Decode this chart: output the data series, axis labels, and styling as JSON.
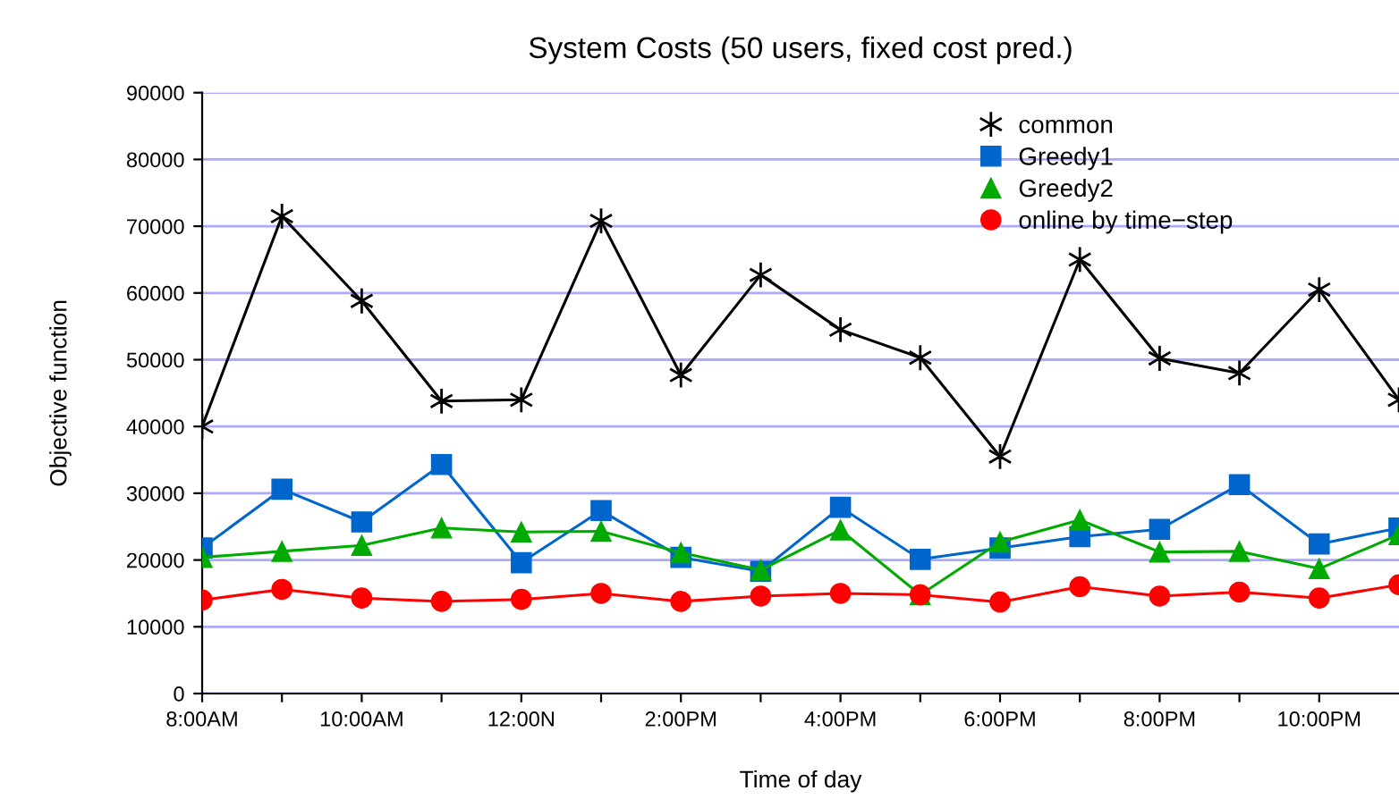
{
  "chart_data": {
    "type": "line",
    "title": "System Costs (50 users, fixed cost pred.)",
    "xlabel": "Time of day",
    "ylabel": "Objective function",
    "x": [
      8,
      9,
      10,
      11,
      12,
      13,
      14,
      15,
      16,
      17,
      18,
      19,
      20,
      21,
      22,
      23
    ],
    "series": [
      {
        "name": "common",
        "color": "#000000",
        "marker": "cross",
        "values": [
          40000,
          71500,
          58800,
          43800,
          44000,
          70800,
          47700,
          62700,
          54500,
          50300,
          35500,
          65000,
          50200,
          48000,
          60500,
          44000
        ]
      },
      {
        "name": "Greedy1",
        "color": "#0066cc",
        "marker": "square",
        "values": [
          21800,
          30600,
          25700,
          34300,
          19600,
          27400,
          20400,
          18300,
          27900,
          20100,
          21800,
          23500,
          24600,
          31300,
          22400,
          24800
        ]
      },
      {
        "name": "Greedy2",
        "color": "#00aa00",
        "marker": "triangle",
        "values": [
          20400,
          21300,
          22200,
          24800,
          24200,
          24300,
          21100,
          18500,
          24500,
          14800,
          22700,
          26000,
          21200,
          21300,
          18700,
          23800
        ]
      },
      {
        "name": "online by time−step",
        "color": "#ff0000",
        "marker": "circle",
        "values": [
          14000,
          15600,
          14300,
          13800,
          14100,
          15000,
          13800,
          14600,
          15000,
          14800,
          13700,
          16000,
          14600,
          15200,
          14300,
          16300
        ]
      }
    ],
    "xlim": [
      8,
      23
    ],
    "xticks": [
      {
        "value": 8,
        "label": "8:00AM"
      },
      {
        "value": 9,
        "label": null
      },
      {
        "value": 10,
        "label": "10:00AM"
      },
      {
        "value": 11,
        "label": null
      },
      {
        "value": 12,
        "label": "12:00N"
      },
      {
        "value": 13,
        "label": null
      },
      {
        "value": 14,
        "label": "2:00PM"
      },
      {
        "value": 15,
        "label": null
      },
      {
        "value": 16,
        "label": "4:00PM"
      },
      {
        "value": 17,
        "label": null
      },
      {
        "value": 18,
        "label": "6:00PM"
      },
      {
        "value": 19,
        "label": null
      },
      {
        "value": 20,
        "label": "8:00PM"
      },
      {
        "value": 21,
        "label": null
      },
      {
        "value": 22,
        "label": "10:00PM"
      }
    ],
    "ylim": [
      0,
      90000
    ],
    "yticks": [
      0,
      10000,
      20000,
      30000,
      40000,
      50000,
      60000,
      70000,
      80000,
      90000
    ],
    "grid": "y",
    "legend": "top right",
    "line_style": "solid"
  }
}
